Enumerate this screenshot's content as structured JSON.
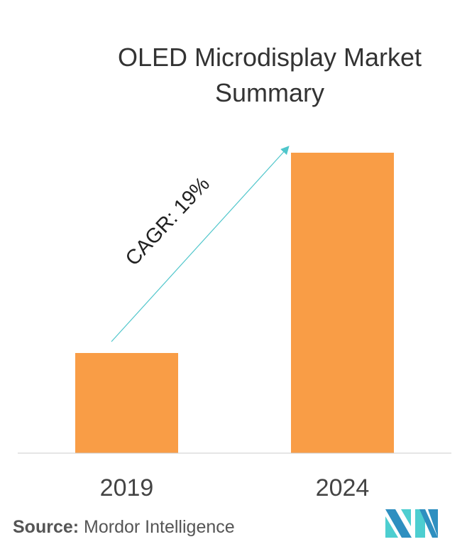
{
  "title": "OLED Microdisplay Market Summary",
  "chart_data": {
    "type": "bar",
    "title": "OLED Microdisplay Market Summary",
    "categories": [
      "2019",
      "2024"
    ],
    "values": [
      1,
      3
    ],
    "value_note_unitless": true,
    "annotation": "CAGR: 19%",
    "xlabel": "",
    "ylabel": "",
    "grid": false,
    "bar_color": "#F99D46",
    "arrow_color": "#4FC6CB",
    "axis_color": "#CCCCCC"
  },
  "source": {
    "label": "Source:",
    "text": "Mordor Intelligence"
  },
  "logo": {
    "text": "Mordor Intelligence",
    "colors": [
      "#2E8FC0",
      "#4DCED0"
    ]
  }
}
